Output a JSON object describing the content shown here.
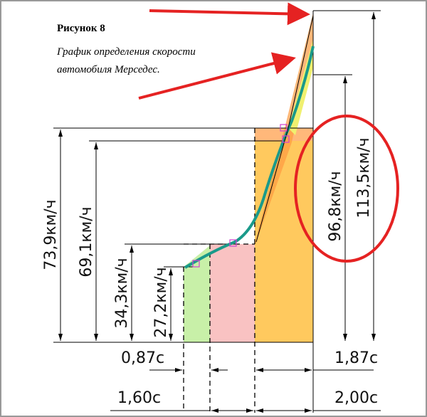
{
  "figure": {
    "number": "Рисунок 8",
    "caption_lines": [
      "График определения скорости",
      "автомобиля Мерседес."
    ]
  },
  "dimensions": {
    "speeds": [
      "73,9км/ч",
      "69,1км/ч",
      "34,3км/ч",
      "27,2км/ч",
      "96,8км/ч",
      "113,5км/ч"
    ],
    "times": [
      "0,87с",
      "1,87с",
      "1,60с",
      "2,00с"
    ]
  }
}
